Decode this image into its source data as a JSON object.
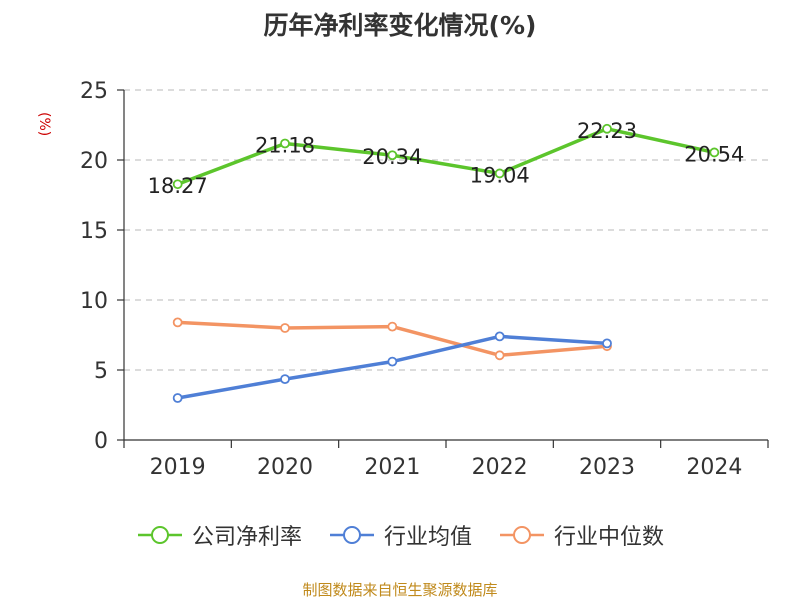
{
  "chart_data": {
    "type": "line",
    "title": "历年净利率变化情况(%)",
    "ylabel": "(%)",
    "xlabel": "",
    "categories": [
      "2019",
      "2020",
      "2021",
      "2022",
      "2023",
      "2024"
    ],
    "ylim": [
      0,
      25
    ],
    "yticks": [
      "0",
      "5",
      "10",
      "15",
      "20",
      "25"
    ],
    "grid": true,
    "legend_position": "bottom",
    "series": [
      {
        "name": "公司净利率",
        "color": "#5cc52c",
        "values": [
          18.27,
          21.18,
          20.34,
          19.04,
          22.23,
          20.54
        ],
        "labels": [
          "18.27",
          "21.18",
          "20.34",
          "19.04",
          "22.23",
          "20.54"
        ]
      },
      {
        "name": "行业均值",
        "color": "#4f7fd6",
        "values": [
          3.0,
          4.35,
          5.6,
          7.4,
          6.9,
          null
        ]
      },
      {
        "name": "行业中位数",
        "color": "#f39463",
        "values": [
          8.4,
          8.0,
          8.1,
          6.05,
          6.7,
          null
        ]
      }
    ]
  },
  "source": "制图数据来自恒生聚源数据库"
}
